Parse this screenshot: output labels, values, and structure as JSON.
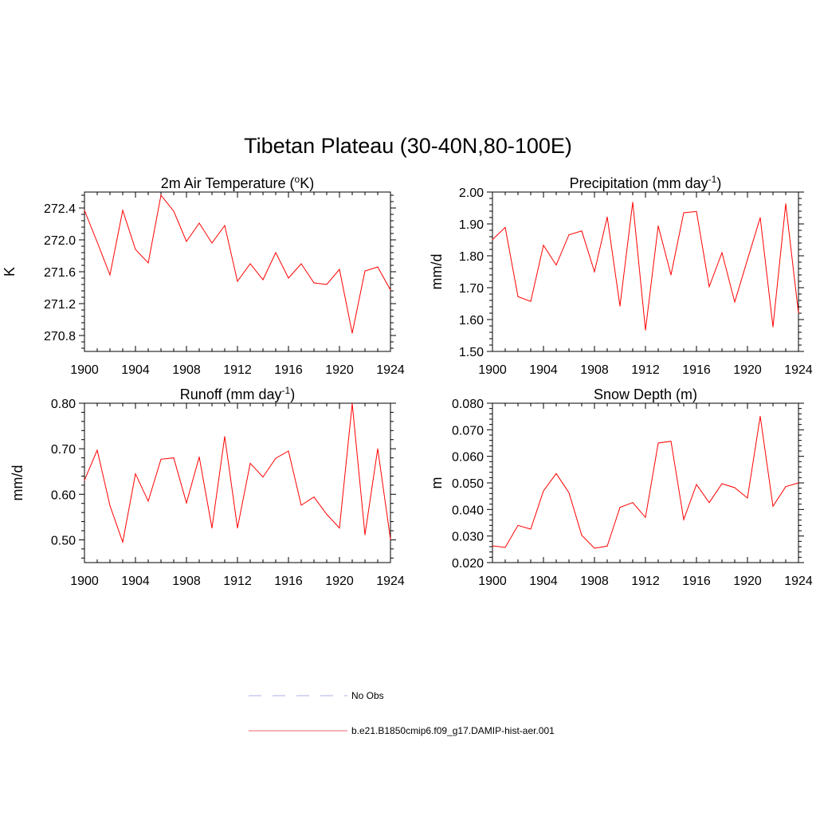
{
  "figure": {
    "title": "Tibetan Plateau (30-40N,80-100E)"
  },
  "legend": {
    "entries": [
      {
        "label": "No Obs",
        "color": "#aab0e6",
        "dash": true
      },
      {
        "label": "b.e21.B1850cmip6.f09_g17.DAMIP-hist-aer.001",
        "color": "#f06070",
        "dash": false
      }
    ]
  },
  "chart_data": [
    {
      "id": "temperature",
      "type": "line",
      "title_text": "2m Air Temperature (",
      "title_sup": "o",
      "title_after": "K)",
      "ylabel": "K",
      "xlim": [
        1900,
        1924
      ],
      "ylim": [
        270.6,
        272.6
      ],
      "xticks": [
        1900,
        1904,
        1908,
        1912,
        1916,
        1920,
        1924
      ],
      "yticks": [
        "270.8",
        "271.2",
        "271.6",
        "272.0",
        "272.4"
      ],
      "x": [
        1900,
        1901,
        1902,
        1903,
        1904,
        1905,
        1906,
        1907,
        1908,
        1909,
        1910,
        1911,
        1912,
        1913,
        1914,
        1915,
        1916,
        1917,
        1918,
        1919,
        1920,
        1921,
        1922,
        1923,
        1924
      ],
      "series": [
        {
          "values": [
            272.37,
            271.97,
            271.56,
            272.37,
            271.88,
            271.71,
            272.56,
            272.36,
            271.98,
            272.21,
            271.96,
            272.18,
            271.48,
            271.7,
            271.5,
            271.84,
            271.52,
            271.7,
            271.46,
            271.44,
            271.63,
            270.83,
            271.61,
            271.66,
            271.37
          ],
          "color": "#ff0000"
        }
      ]
    },
    {
      "id": "precipitation",
      "type": "line",
      "title_text": "Precipitation (mm day",
      "title_sup": "-1",
      "title_after": ")",
      "ylabel": "mm/d",
      "xlim": [
        1900,
        1924
      ],
      "ylim": [
        1.5,
        2.0
      ],
      "xticks": [
        1900,
        1904,
        1908,
        1912,
        1916,
        1920,
        1924
      ],
      "yticks": [
        "1.50",
        "1.60",
        "1.70",
        "1.80",
        "1.90",
        "2.00"
      ],
      "x": [
        1900,
        1901,
        1902,
        1903,
        1904,
        1905,
        1906,
        1907,
        1908,
        1909,
        1910,
        1911,
        1912,
        1913,
        1914,
        1915,
        1916,
        1917,
        1918,
        1919,
        1920,
        1921,
        1922,
        1923,
        1924
      ],
      "series": [
        {
          "values": [
            1.851,
            1.889,
            1.672,
            1.657,
            1.833,
            1.771,
            1.866,
            1.878,
            1.75,
            1.922,
            1.642,
            1.968,
            1.567,
            1.894,
            1.74,
            1.935,
            1.939,
            1.703,
            1.81,
            1.655,
            1.788,
            1.92,
            1.577,
            1.963,
            1.62
          ],
          "color": "#ff0000"
        }
      ]
    },
    {
      "id": "runoff",
      "type": "line",
      "title_text": "Runoff (mm day",
      "title_sup": "-1",
      "title_after": ")",
      "ylabel": "mm/d",
      "xlim": [
        1900,
        1924
      ],
      "ylim": [
        0.45,
        0.8
      ],
      "xticks": [
        1900,
        1904,
        1908,
        1912,
        1916,
        1920,
        1924
      ],
      "yticks": [
        "0.50",
        "0.60",
        "0.70",
        "0.80"
      ],
      "x": [
        1900,
        1901,
        1902,
        1903,
        1904,
        1905,
        1906,
        1907,
        1908,
        1909,
        1910,
        1911,
        1912,
        1913,
        1914,
        1915,
        1916,
        1917,
        1918,
        1919,
        1920,
        1921,
        1922,
        1923,
        1924
      ],
      "series": [
        {
          "values": [
            0.631,
            0.697,
            0.575,
            0.495,
            0.645,
            0.585,
            0.677,
            0.68,
            0.581,
            0.682,
            0.526,
            0.727,
            0.526,
            0.668,
            0.638,
            0.679,
            0.695,
            0.576,
            0.594,
            0.556,
            0.526,
            0.799,
            0.511,
            0.7,
            0.501
          ],
          "color": "#ff0000"
        }
      ]
    },
    {
      "id": "snow",
      "type": "line",
      "title_text": "Snow Depth (m)",
      "title_sup": "",
      "title_after": "",
      "ylabel": "m",
      "xlim": [
        1900,
        1924
      ],
      "ylim": [
        0.02,
        0.08
      ],
      "xticks": [
        1900,
        1904,
        1908,
        1912,
        1916,
        1920,
        1924
      ],
      "yticks": [
        "0.020",
        "0.030",
        "0.040",
        "0.050",
        "0.060",
        "0.070",
        "0.080"
      ],
      "x": [
        1900,
        1901,
        1902,
        1903,
        1904,
        1905,
        1906,
        1907,
        1908,
        1909,
        1910,
        1911,
        1912,
        1913,
        1914,
        1915,
        1916,
        1917,
        1918,
        1919,
        1920,
        1921,
        1922,
        1923,
        1924
      ],
      "series": [
        {
          "values": [
            0.0263,
            0.0257,
            0.034,
            0.0326,
            0.047,
            0.0535,
            0.0463,
            0.0303,
            0.0254,
            0.0262,
            0.0408,
            0.0426,
            0.037,
            0.065,
            0.0657,
            0.0362,
            0.0494,
            0.0426,
            0.0497,
            0.0482,
            0.0443,
            0.0751,
            0.0412,
            0.0486,
            0.05
          ],
          "color": "#ff0000"
        }
      ]
    }
  ]
}
